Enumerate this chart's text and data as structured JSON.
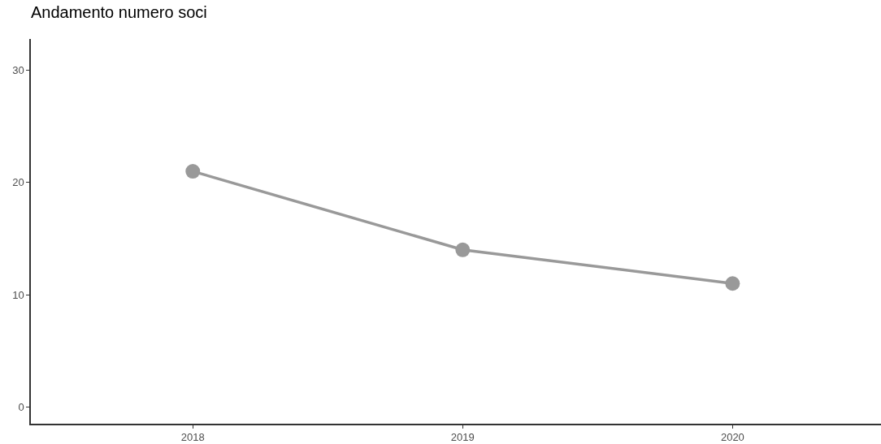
{
  "chart_data": {
    "type": "line",
    "title": "Andamento numero soci",
    "categories": [
      "2018",
      "2019",
      "2020"
    ],
    "series": [
      {
        "color": "#999999",
        "values": [
          21,
          14,
          11
        ]
      }
    ],
    "ylim": [
      -1.5,
      32.8
    ],
    "yticks": [
      0,
      10,
      20,
      30
    ],
    "marker": "circle",
    "line_style": "solid"
  }
}
